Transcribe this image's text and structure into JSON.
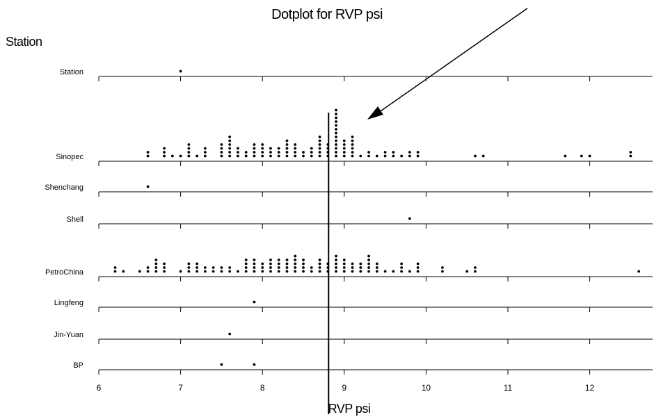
{
  "chart_data": {
    "type": "scatter",
    "title": "Dotplot for RVP psi",
    "group_label": "Station",
    "xlabel": "RVP psi",
    "xlim": [
      6,
      12.7
    ],
    "x_ticks": [
      6,
      7,
      8,
      9,
      10,
      11,
      12
    ],
    "grid": false,
    "reference_line_x": 8.8,
    "arrow_annotation": true,
    "categories": [
      "Station",
      "Sinopec",
      "Shenchang",
      "Shell",
      "PetroChina",
      "Lingfeng",
      "Jin-Yuan",
      "BP"
    ],
    "series": [
      {
        "name": "Station",
        "values": [
          7.0
        ]
      },
      {
        "name": "Sinopec",
        "values": [
          6.6,
          6.6,
          6.8,
          6.8,
          6.8,
          6.9,
          7.0,
          7.1,
          7.1,
          7.1,
          7.1,
          7.2,
          7.3,
          7.3,
          7.3,
          7.5,
          7.5,
          7.5,
          7.5,
          7.6,
          7.6,
          7.6,
          7.6,
          7.6,
          7.6,
          7.7,
          7.7,
          7.7,
          7.8,
          7.8,
          7.9,
          7.9,
          7.9,
          7.9,
          8.0,
          8.0,
          8.0,
          8.0,
          8.1,
          8.1,
          8.1,
          8.2,
          8.2,
          8.2,
          8.3,
          8.3,
          8.3,
          8.3,
          8.3,
          8.4,
          8.4,
          8.4,
          8.4,
          8.5,
          8.5,
          8.6,
          8.6,
          8.6,
          8.7,
          8.7,
          8.7,
          8.7,
          8.7,
          8.7,
          8.8,
          8.8,
          8.8,
          8.8,
          8.9,
          8.9,
          8.9,
          8.9,
          8.9,
          8.9,
          8.9,
          8.9,
          8.9,
          8.9,
          8.9,
          8.9,
          8.9,
          9.0,
          9.0,
          9.0,
          9.0,
          9.0,
          9.1,
          9.1,
          9.1,
          9.1,
          9.1,
          9.1,
          9.2,
          9.3,
          9.3,
          9.4,
          9.5,
          9.5,
          9.6,
          9.6,
          9.7,
          9.8,
          9.8,
          9.9,
          9.9,
          10.6,
          10.7,
          11.7,
          11.9,
          12.0,
          12.5,
          12.5
        ]
      },
      {
        "name": "Shenchang",
        "values": [
          6.6
        ]
      },
      {
        "name": "Shell",
        "values": [
          9.8
        ]
      },
      {
        "name": "PetroChina",
        "values": [
          6.2,
          6.2,
          6.3,
          6.5,
          6.6,
          6.6,
          6.7,
          6.7,
          6.7,
          6.7,
          6.8,
          6.8,
          6.8,
          7.0,
          7.1,
          7.1,
          7.1,
          7.2,
          7.2,
          7.2,
          7.3,
          7.3,
          7.4,
          7.4,
          7.5,
          7.5,
          7.6,
          7.6,
          7.7,
          7.8,
          7.8,
          7.8,
          7.8,
          7.9,
          7.9,
          7.9,
          7.9,
          8.0,
          8.0,
          8.0,
          8.1,
          8.1,
          8.1,
          8.1,
          8.2,
          8.2,
          8.2,
          8.2,
          8.3,
          8.3,
          8.3,
          8.3,
          8.4,
          8.4,
          8.4,
          8.4,
          8.4,
          8.5,
          8.5,
          8.5,
          8.5,
          8.6,
          8.6,
          8.7,
          8.7,
          8.7,
          8.7,
          8.8,
          8.8,
          8.8,
          8.9,
          8.9,
          8.9,
          8.9,
          8.9,
          9.0,
          9.0,
          9.0,
          9.0,
          9.1,
          9.1,
          9.1,
          9.2,
          9.2,
          9.2,
          9.3,
          9.3,
          9.3,
          9.3,
          9.3,
          9.4,
          9.4,
          9.4,
          9.5,
          9.6,
          9.7,
          9.7,
          9.7,
          9.8,
          9.9,
          9.9,
          9.9,
          10.2,
          10.2,
          10.5,
          10.6,
          10.6,
          12.6
        ]
      },
      {
        "name": "Lingfeng",
        "values": [
          7.9
        ]
      },
      {
        "name": "Jin-Yuan",
        "values": [
          7.6
        ]
      },
      {
        "name": "BP",
        "values": [
          7.5,
          7.9
        ]
      }
    ]
  }
}
